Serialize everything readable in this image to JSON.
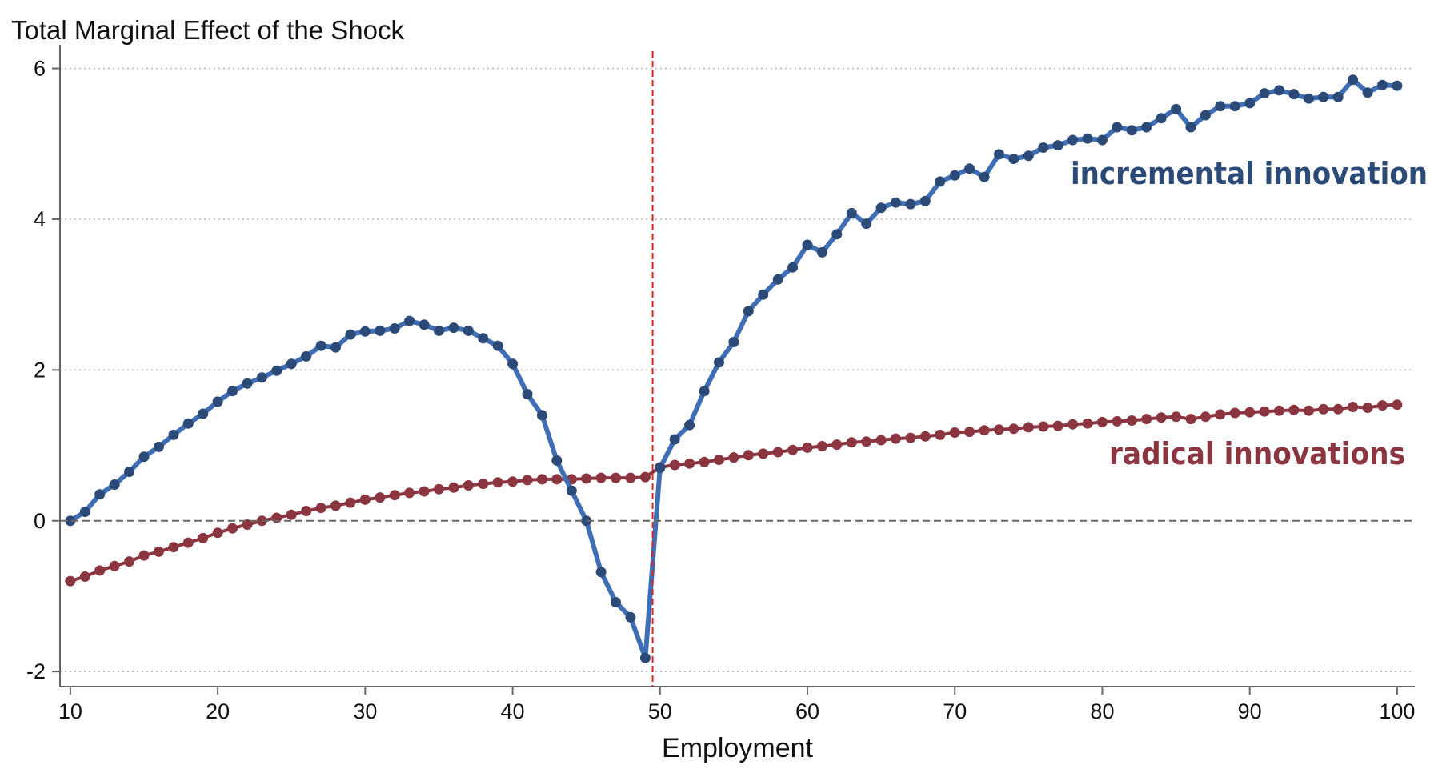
{
  "chart_data": {
    "type": "line",
    "title": "Total Marginal Effect of the Shock",
    "xlabel": "Employment",
    "ylabel": "",
    "xlim": [
      9.3,
      101.2
    ],
    "ylim": [
      -2.2,
      6.25
    ],
    "xticks": [
      10,
      20,
      30,
      40,
      50,
      60,
      70,
      80,
      90,
      100
    ],
    "yticks": [
      -2,
      0,
      2,
      4,
      6
    ],
    "grid": true,
    "reference_lines": {
      "horizontal_zero": 0,
      "vertical_threshold": 49.5
    },
    "colors": {
      "incremental": "#3f6eb5",
      "incremental_marker": "#2b4a78",
      "radical": "#8b3540",
      "radical_marker": "#8b3540",
      "threshold": "#d62728",
      "zero_line": "#666666",
      "grid": "#bbbbbb",
      "axis": "#666666"
    },
    "x": [
      10,
      11,
      12,
      13,
      14,
      15,
      16,
      17,
      18,
      19,
      20,
      21,
      22,
      23,
      24,
      25,
      26,
      27,
      28,
      29,
      30,
      31,
      32,
      33,
      34,
      35,
      36,
      37,
      38,
      39,
      40,
      41,
      42,
      43,
      44,
      45,
      46,
      47,
      48,
      49,
      50,
      51,
      52,
      53,
      54,
      55,
      56,
      57,
      58,
      59,
      60,
      61,
      62,
      63,
      64,
      65,
      66,
      67,
      68,
      69,
      70,
      71,
      72,
      73,
      74,
      75,
      76,
      77,
      78,
      79,
      80,
      81,
      82,
      83,
      84,
      85,
      86,
      87,
      88,
      89,
      90,
      91,
      92,
      93,
      94,
      95,
      96,
      97,
      98,
      99,
      100
    ],
    "series": [
      {
        "name": "incremental innovation",
        "values": [
          0.0,
          0.12,
          0.35,
          0.48,
          0.65,
          0.85,
          0.98,
          1.14,
          1.29,
          1.42,
          1.58,
          1.72,
          1.82,
          1.9,
          1.99,
          2.08,
          2.18,
          2.32,
          2.3,
          2.47,
          2.51,
          2.52,
          2.55,
          2.65,
          2.6,
          2.52,
          2.56,
          2.52,
          2.42,
          2.32,
          2.08,
          1.68,
          1.4,
          0.8,
          0.4,
          0.0,
          -0.68,
          -1.08,
          -1.28,
          -1.82,
          0.7,
          1.08,
          1.27,
          1.72,
          2.1,
          2.37,
          2.78,
          3.0,
          3.2,
          3.36,
          3.66,
          3.56,
          3.8,
          4.08,
          3.94,
          4.15,
          4.22,
          4.2,
          4.24,
          4.5,
          4.58,
          4.67,
          4.56,
          4.86,
          4.8,
          4.84,
          4.95,
          4.98,
          5.05,
          5.07,
          5.05,
          5.22,
          5.18,
          5.22,
          5.34,
          5.46,
          5.22,
          5.38,
          5.5,
          5.5,
          5.54,
          5.67,
          5.71,
          5.66,
          5.6,
          5.62,
          5.62,
          5.85,
          5.68,
          5.78,
          5.77
        ]
      },
      {
        "name": "radical innovations",
        "values": [
          -0.8,
          -0.74,
          -0.66,
          -0.6,
          -0.54,
          -0.46,
          -0.41,
          -0.35,
          -0.29,
          -0.23,
          -0.16,
          -0.1,
          -0.05,
          0.0,
          0.04,
          0.08,
          0.13,
          0.17,
          0.2,
          0.24,
          0.28,
          0.31,
          0.34,
          0.37,
          0.39,
          0.42,
          0.44,
          0.47,
          0.49,
          0.51,
          0.52,
          0.54,
          0.55,
          0.55,
          0.55,
          0.56,
          0.57,
          0.57,
          0.57,
          0.58,
          0.71,
          0.74,
          0.76,
          0.78,
          0.81,
          0.84,
          0.87,
          0.89,
          0.91,
          0.94,
          0.97,
          0.99,
          1.01,
          1.04,
          1.05,
          1.07,
          1.09,
          1.1,
          1.12,
          1.14,
          1.17,
          1.18,
          1.2,
          1.21,
          1.22,
          1.24,
          1.25,
          1.26,
          1.28,
          1.29,
          1.31,
          1.32,
          1.33,
          1.35,
          1.37,
          1.38,
          1.35,
          1.38,
          1.41,
          1.43,
          1.44,
          1.45,
          1.46,
          1.47,
          1.46,
          1.48,
          1.48,
          1.51,
          1.5,
          1.53,
          1.54
        ]
      }
    ],
    "annotations": {
      "incremental_label": "incremental innovation",
      "radical_label": "radical innovations"
    }
  }
}
